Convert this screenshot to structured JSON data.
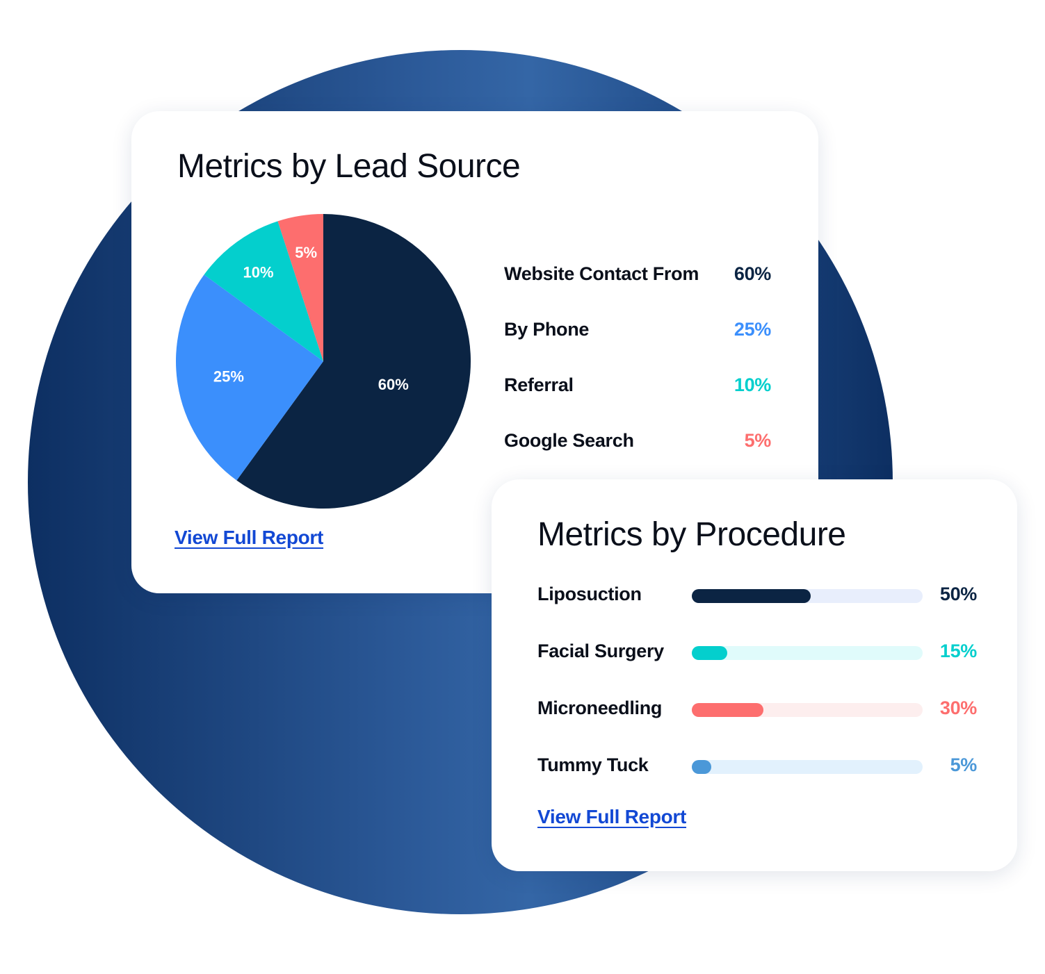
{
  "colors": {
    "navy": "#0b2443",
    "blue": "#3b8ffc",
    "teal": "#04cfcd",
    "coral": "#fd6e6e",
    "sky": "#4b98d8",
    "link": "#1248d4"
  },
  "lead_card": {
    "title": "Metrics by Lead Source",
    "link_label": "View Full Report"
  },
  "procedure_card": {
    "title": "Metrics by Procedure",
    "link_label": "View Full Report"
  },
  "chart_data": [
    {
      "type": "pie",
      "title": "Metrics by Lead Source",
      "categories": [
        "Website Contact From",
        "By Phone",
        "Referral",
        "Google Search"
      ],
      "values": [
        60,
        25,
        10,
        5
      ],
      "labels": [
        "60%",
        "25%",
        "10%",
        "5%"
      ],
      "colors": [
        "#0b2443",
        "#3b8ffc",
        "#04cfcd",
        "#fd6e6e"
      ],
      "legend": "right"
    },
    {
      "type": "bar",
      "title": "Metrics by Procedure",
      "categories": [
        "Liposuction",
        "Facial Surgery",
        "Microneedling",
        "Tummy Tuck"
      ],
      "values": [
        50,
        15,
        30,
        5
      ],
      "labels": [
        "50%",
        "15%",
        "30%",
        "5%"
      ],
      "colors": [
        "#0b2443",
        "#04cfcd",
        "#fd6e6e",
        "#4b98d8"
      ],
      "track_colors": [
        "#e8eefc",
        "#e0fbfb",
        "#fdeeee",
        "#e2f1fd"
      ],
      "ylim": [
        0,
        100
      ]
    }
  ]
}
